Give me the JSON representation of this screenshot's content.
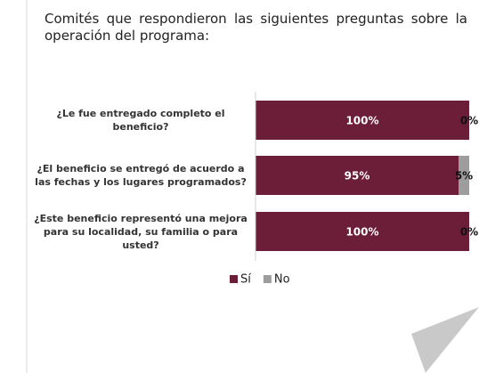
{
  "chart_data": {
    "type": "stacked-bar-horizontal",
    "title": "Comités que respondieron las siguientes preguntas sobre la operación del programa:",
    "categories": [
      "¿Le fue entregado completo el beneficio?",
      "¿El beneficio se entregó de acuerdo a las fechas y los lugares programados?",
      "¿Este beneficio representó una mejora para su localidad, su familia o para usted?"
    ],
    "series": [
      {
        "name": "Sí",
        "color": "#6c1d37",
        "values": [
          100,
          95,
          100
        ],
        "value_labels": [
          "100%",
          "95%",
          "100%"
        ]
      },
      {
        "name": "No",
        "color": "#9d9d9d",
        "values": [
          0,
          5,
          0
        ],
        "value_labels": [
          "0%",
          "5%",
          "0%"
        ]
      }
    ],
    "xlim": [
      0,
      100
    ]
  }
}
